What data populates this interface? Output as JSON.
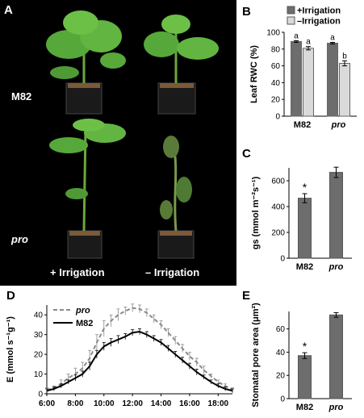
{
  "panels": {
    "a": {
      "letter": "A",
      "row_labels": [
        "M82",
        "pro"
      ],
      "col_labels": [
        "+ Irrigation",
        "– Irrigation"
      ]
    },
    "b": {
      "letter": "B"
    },
    "c": {
      "letter": "C"
    },
    "d": {
      "letter": "D"
    },
    "e": {
      "letter": "E"
    }
  },
  "colors": {
    "dark_bar": "#6d6d6d",
    "light_bar": "#dadada",
    "photo_bg": "#000000",
    "plant_green": "#4a9a2a"
  },
  "chart_data": [
    {
      "id": "b",
      "type": "bar",
      "ylabel": "Leaf RWC (%)",
      "ylim": [
        0,
        100
      ],
      "yticks": [
        "0",
        "20",
        "40",
        "60",
        "80",
        "100"
      ],
      "categories": [
        "M82",
        "pro"
      ],
      "series": [
        {
          "name": "+Irrigation",
          "values": [
            89,
            87
          ],
          "errors": [
            1,
            1
          ],
          "sig": [
            "a",
            "a"
          ]
        },
        {
          "name": "–Irrigation",
          "values": [
            81,
            63
          ],
          "errors": [
            2,
            3
          ],
          "sig": [
            "a",
            "b"
          ]
        }
      ],
      "legend_position": "top"
    },
    {
      "id": "c",
      "type": "bar",
      "ylabel": "gs (mmol m⁻²s⁻¹)",
      "ylim": [
        0,
        700
      ],
      "yticks": [
        "0",
        "200",
        "400",
        "600"
      ],
      "categories": [
        "M82",
        "pro"
      ],
      "values": [
        465,
        665
      ],
      "errors": [
        35,
        40
      ],
      "annotations": [
        "*",
        ""
      ]
    },
    {
      "id": "d",
      "type": "line",
      "ylabel": "E (mmol s⁻¹g⁻¹)",
      "ylim": [
        0,
        45
      ],
      "yticks": [
        "0",
        "10",
        "20",
        "30",
        "40"
      ],
      "xticks": [
        "6:00",
        "8:00",
        "10:00",
        "12:00",
        "14:00",
        "16:00",
        "18:00"
      ],
      "x_hours": [
        6,
        6.5,
        7,
        7.5,
        8,
        8.5,
        9,
        9.5,
        10,
        10.5,
        11,
        11.5,
        12,
        12.5,
        13,
        13.5,
        14,
        14.5,
        15,
        15.5,
        16,
        16.5,
        17,
        17.5,
        18,
        18.5,
        19
      ],
      "series": [
        {
          "name": "pro",
          "style": "dashed",
          "values": [
            2,
            3,
            5,
            8,
            10,
            13,
            18,
            26,
            33,
            37,
            40,
            42,
            43.5,
            43,
            41,
            38,
            35,
            31,
            27,
            23,
            19,
            16,
            12,
            9,
            6,
            4,
            2
          ],
          "errors": [
            1,
            1,
            2,
            2,
            3,
            3,
            4,
            4,
            4,
            3,
            3,
            2,
            2,
            2,
            2,
            2,
            2,
            2,
            2,
            2,
            2,
            2,
            2,
            1,
            1,
            1,
            1
          ]
        },
        {
          "name": "M82",
          "style": "solid",
          "values": [
            1.5,
            2.5,
            4,
            6,
            8,
            10,
            14,
            20,
            24,
            26,
            27.5,
            29,
            31,
            31.5,
            30,
            28,
            26,
            23,
            20,
            17,
            14,
            11,
            8.5,
            6,
            4,
            2.5,
            1.5
          ],
          "errors": [
            1,
            1,
            1,
            1,
            1.5,
            1.5,
            2,
            2,
            2,
            2,
            2,
            1.5,
            1.5,
            1.5,
            1.5,
            1.5,
            1.5,
            1.5,
            1.5,
            1.5,
            1.5,
            1.5,
            1,
            1,
            1,
            1,
            1
          ]
        }
      ],
      "legend_position": "top-left"
    },
    {
      "id": "e",
      "type": "bar",
      "ylabel": "Stomatal pore area (μm²)",
      "ylim": [
        0,
        75
      ],
      "yticks": [
        "0",
        "20",
        "40",
        "60"
      ],
      "categories": [
        "M82",
        "pro"
      ],
      "values": [
        37,
        72
      ],
      "errors": [
        2.5,
        2
      ],
      "annotations": [
        "*",
        ""
      ]
    }
  ]
}
